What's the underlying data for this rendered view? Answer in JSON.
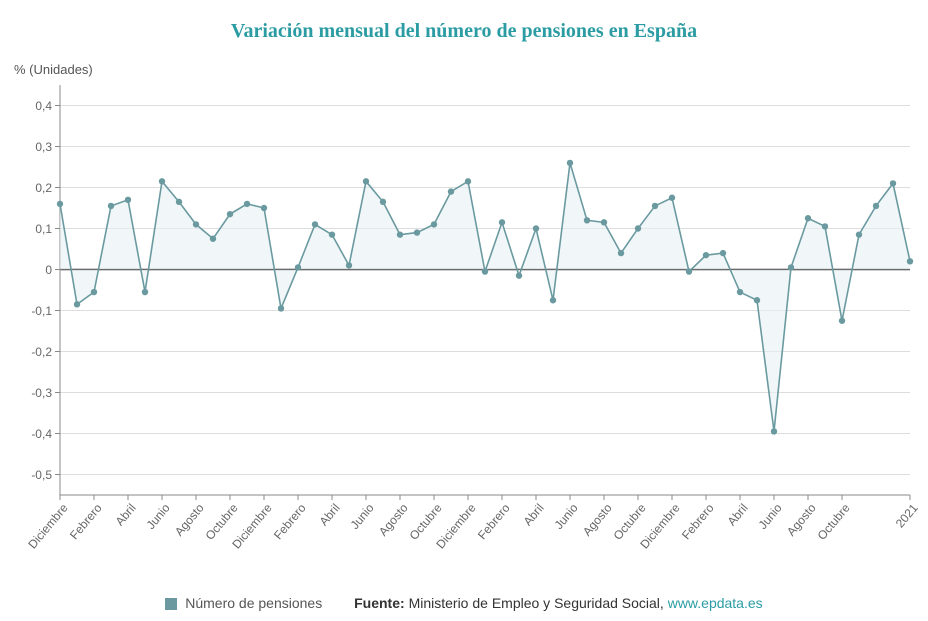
{
  "title": "Variación mensual del número de pensiones en España",
  "y_axis_label": "% (Unidades)",
  "chart": {
    "type": "line-area",
    "ylim": [
      -0.55,
      0.45
    ],
    "yticks": [
      -0.5,
      -0.4,
      -0.3,
      -0.2,
      -0.1,
      0,
      0.1,
      0.2,
      0.3,
      0.4
    ],
    "ytick_labels": [
      "-0,5",
      "-0,4",
      "-0,3",
      "-0,2",
      "-0,1",
      "0",
      "0,1",
      "0,2",
      "0,3",
      "0,4"
    ],
    "x_labels": [
      "Diciembre",
      "Febrero",
      "Abril",
      "Junio",
      "Agosto",
      "Octubre",
      "Diciembre",
      "Febrero",
      "Abril",
      "Junio",
      "Agosto",
      "Octubre",
      "Diciembre",
      "Febrero",
      "Abril",
      "Junio",
      "Agosto",
      "Octubre",
      "Diciembre",
      "Febrero",
      "Abril",
      "Junio",
      "Agosto",
      "Octubre",
      "2021"
    ],
    "x_label_step": 2,
    "values": [
      0.16,
      -0.085,
      -0.055,
      0.155,
      0.17,
      -0.055,
      0.215,
      0.165,
      0.11,
      0.075,
      0.135,
      0.16,
      0.15,
      -0.095,
      0.005,
      0.11,
      0.085,
      0.01,
      0.215,
      0.165,
      0.085,
      0.09,
      0.11,
      0.19,
      0.215,
      -0.005,
      0.115,
      -0.015,
      0.1,
      -0.075,
      0.26,
      0.12,
      0.115,
      0.04,
      0.1,
      0.155,
      0.175,
      -0.005,
      0.035,
      0.04,
      -0.055,
      -0.075,
      -0.395,
      0.005,
      0.125,
      0.105,
      -0.125,
      0.085,
      0.155,
      0.21,
      0.02
    ],
    "series_name": "Número de pensiones",
    "line_color": "#6a9aa0",
    "marker_color": "#6a9aa0",
    "area_fill": "#e8f2f3",
    "area_opacity": 0.6,
    "grid_color": "#dddddd",
    "axis_color": "#888888",
    "zero_color": "#333333",
    "background": "#ffffff",
    "marker_radius": 3.2,
    "line_width": 1.6,
    "y_tick_mark_color": "#888888"
  },
  "legend": {
    "swatch_color": "#6a9aa0",
    "series_label": "Número de pensiones",
    "source_label": "Fuente:",
    "source_text": "Ministerio de Empleo y Seguridad Social, ",
    "link_text": "www.epdata.es"
  }
}
